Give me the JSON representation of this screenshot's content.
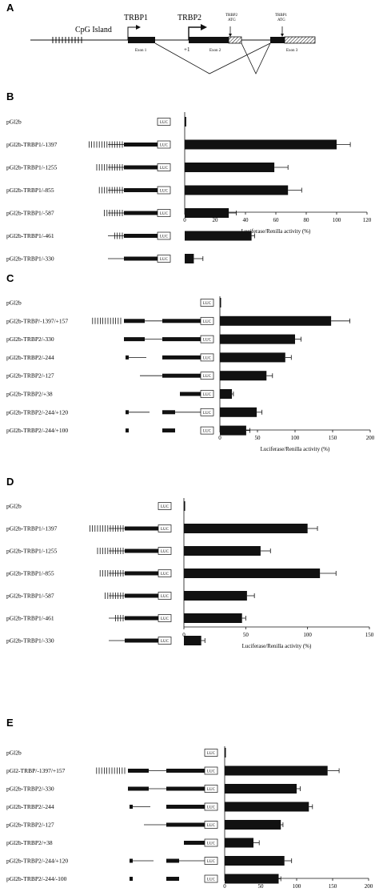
{
  "panel_a": {
    "letter": "A",
    "cpg_label": "CpG Island",
    "trbp1_label": "TRBP1",
    "trbp2_label": "TRBP2",
    "plus1_label": "+1",
    "trbp2_atg": "TRBP2\nATG",
    "trbp1_atg": "TRBP1\nATG",
    "exon1": "Exon 1",
    "exon2": "Exon 2",
    "exon3": "Exon 3"
  },
  "luc_label": "LUC",
  "chart_data": [
    {
      "panel": "B",
      "type": "bar",
      "orientation": "horizontal",
      "categories": [
        "pGl2b",
        "pGl2b-TRBP1/-1397",
        "pGl2b-TRBP1/-1255",
        "pGl2b-TRBP1/-855",
        "pGl2b-TRBP1/-587",
        "pGl2b-TRBP1/-461",
        "pGl2b-TRBP1/-330"
      ],
      "values": [
        1,
        100,
        59,
        68,
        29,
        44,
        6
      ],
      "errors": [
        0,
        9,
        9,
        9,
        5,
        2,
        6
      ],
      "xticks": [
        0,
        20,
        40,
        60,
        80,
        100,
        120
      ],
      "xlim": [
        0,
        120
      ],
      "xlabel": "Luciferase/Renilla activity (%)",
      "constructs": [
        "none",
        "p1",
        "p1",
        "p1",
        "p1",
        "p1",
        "p1"
      ],
      "cpg": [
        0,
        14,
        11,
        10,
        8,
        4,
        0
      ]
    },
    {
      "panel": "C",
      "type": "bar",
      "orientation": "horizontal",
      "categories": [
        "pGl2b",
        "pGl2b-TRBP/-1397/+157",
        "pGl2b-TRBP2/-330",
        "pGl2b-TRBP2/-244",
        "pGl2b-TRBP2/-127",
        "pGl2b-TRBP2/+38",
        "pGl2b-TRBP2/-244/+120",
        "pGl2b-TRBP2/-244/+100"
      ],
      "values": [
        1,
        148,
        100,
        87,
        62,
        16,
        49,
        35
      ],
      "errors": [
        0,
        25,
        8,
        8,
        8,
        2,
        7,
        5
      ],
      "xticks": [
        0,
        50,
        100,
        150,
        200
      ],
      "xlim": [
        0,
        200
      ],
      "xlabel": "Luciferase/Renilla activity (%)",
      "constructs": [
        "none",
        "full",
        "t2a",
        "t2b",
        "t2c",
        "t2d",
        "t2e",
        "t2f"
      ],
      "cpg": [
        0,
        12,
        0,
        0,
        0,
        0,
        0,
        0
      ]
    },
    {
      "panel": "D",
      "type": "bar",
      "orientation": "horizontal",
      "categories": [
        "pGl2b",
        "pGl2b-TRBP1/-1397",
        "pGl2b-TRBP1/-1255",
        "pGl2b-TRBP1/-855",
        "pGl2b-TRBP1/-587",
        "pGl2b-TRBP1/-461",
        "pGl2b-TRBP1/-330"
      ],
      "values": [
        1,
        100,
        62,
        110,
        51,
        47,
        14
      ],
      "errors": [
        0,
        8,
        8,
        13,
        6,
        3,
        3
      ],
      "xticks": [
        0,
        50,
        100,
        150
      ],
      "xlim": [
        0,
        150
      ],
      "xlabel": "Luciferase/Renilla activity (%)",
      "constructs": [
        "none",
        "p1",
        "p1",
        "p1",
        "p1",
        "p1",
        "p1"
      ],
      "cpg": [
        0,
        14,
        11,
        10,
        8,
        4,
        0
      ]
    },
    {
      "panel": "E",
      "type": "bar",
      "orientation": "horizontal",
      "categories": [
        "pGl2b",
        "pGl2-TRBP/-1397/+157",
        "pGl2b-TRBP2/-330",
        "pGl2b-TRBP2/-244",
        "pGl2b-TRBP2/-127",
        "pGl2b-TRBP2/+38",
        "pGl2b-TRBP2/-244/+120",
        "pGl2b-TRBP2/-244/-100"
      ],
      "values": [
        1,
        143,
        100,
        117,
        78,
        40,
        83,
        75
      ],
      "errors": [
        0,
        16,
        5,
        5,
        3,
        8,
        10,
        3
      ],
      "xticks": [
        0,
        50,
        100,
        150,
        200
      ],
      "xlim": [
        0,
        200
      ],
      "xlabel": "Luciferase/Renilla activity (%)",
      "constructs": [
        "none",
        "full",
        "t2a",
        "t2b",
        "t2c",
        "t2d",
        "t2e",
        "t2f"
      ],
      "cpg": [
        0,
        12,
        0,
        0,
        0,
        0,
        0,
        0
      ]
    }
  ]
}
